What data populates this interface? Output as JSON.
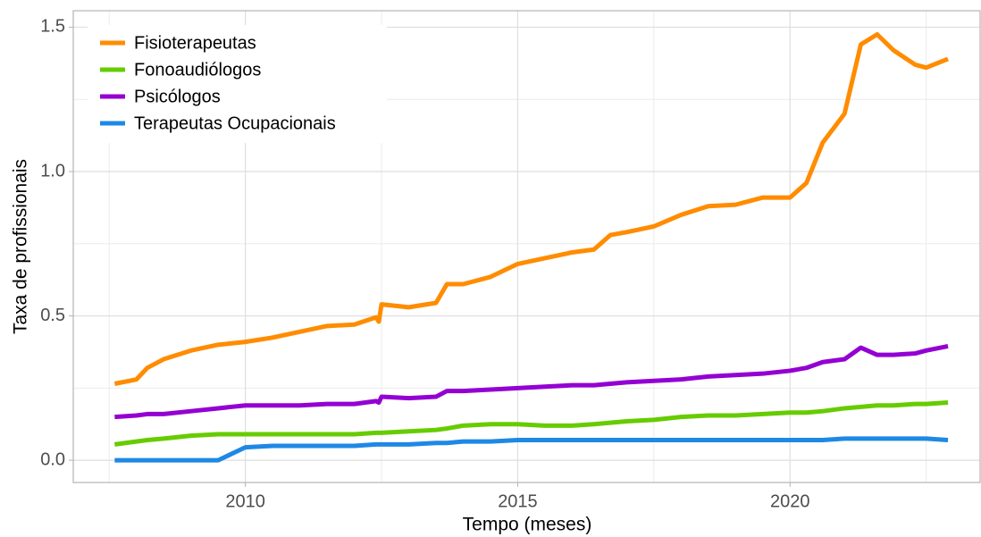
{
  "chart_data": {
    "type": "line",
    "xlabel": "Tempo (meses)",
    "ylabel": "Taxa de profissionais",
    "x": [
      2007.6,
      2008,
      2008.2,
      2008.5,
      2009,
      2009.5,
      2010,
      2010.5,
      2011,
      2011.5,
      2012,
      2012.4,
      2012.45,
      2012.5,
      2013,
      2013.5,
      2013.7,
      2014,
      2014.5,
      2015,
      2015.5,
      2016,
      2016.4,
      2016.7,
      2017,
      2017.5,
      2018,
      2018.5,
      2019,
      2019.5,
      2020,
      2020.3,
      2020.6,
      2021,
      2021.3,
      2021.6,
      2021.9,
      2022.3,
      2022.5,
      2022.9
    ],
    "series": [
      {
        "name": "Fisioterapeutas",
        "color": "#ff8c00",
        "values": [
          0.265,
          0.28,
          0.32,
          0.35,
          0.38,
          0.4,
          0.41,
          0.425,
          0.445,
          0.465,
          0.47,
          0.495,
          0.48,
          0.54,
          0.53,
          0.545,
          0.61,
          0.61,
          0.635,
          0.68,
          0.7,
          0.72,
          0.73,
          0.78,
          0.79,
          0.81,
          0.85,
          0.88,
          0.885,
          0.91,
          0.91,
          0.96,
          1.1,
          1.2,
          1.44,
          1.475,
          1.42,
          1.37,
          1.36,
          1.39
        ]
      },
      {
        "name": "Fonoaudiólogos",
        "color": "#66cc00",
        "values": [
          0.055,
          0.065,
          0.07,
          0.075,
          0.085,
          0.09,
          0.09,
          0.09,
          0.09,
          0.09,
          0.09,
          0.095,
          0.095,
          0.095,
          0.1,
          0.105,
          0.11,
          0.12,
          0.125,
          0.125,
          0.12,
          0.12,
          0.125,
          0.13,
          0.135,
          0.14,
          0.15,
          0.155,
          0.155,
          0.16,
          0.165,
          0.165,
          0.17,
          0.18,
          0.185,
          0.19,
          0.19,
          0.195,
          0.195,
          0.2
        ]
      },
      {
        "name": "Psicólogos",
        "color": "#9400d3",
        "values": [
          0.15,
          0.155,
          0.16,
          0.16,
          0.17,
          0.18,
          0.19,
          0.19,
          0.19,
          0.195,
          0.195,
          0.205,
          0.2,
          0.22,
          0.215,
          0.22,
          0.24,
          0.24,
          0.245,
          0.25,
          0.255,
          0.26,
          0.26,
          0.265,
          0.27,
          0.275,
          0.28,
          0.29,
          0.295,
          0.3,
          0.31,
          0.32,
          0.34,
          0.35,
          0.39,
          0.365,
          0.365,
          0.37,
          0.38,
          0.395
        ]
      },
      {
        "name": "Terapeutas Ocupacionais",
        "color": "#1e88e5",
        "values": [
          0,
          0,
          0,
          0,
          0,
          0,
          0.045,
          0.05,
          0.05,
          0.05,
          0.05,
          0.055,
          0.055,
          0.055,
          0.055,
          0.06,
          0.06,
          0.065,
          0.065,
          0.07,
          0.07,
          0.07,
          0.07,
          0.07,
          0.07,
          0.07,
          0.07,
          0.07,
          0.07,
          0.07,
          0.07,
          0.07,
          0.07,
          0.075,
          0.075,
          0.075,
          0.075,
          0.075,
          0.075,
          0.07
        ]
      }
    ],
    "xlim": [
      2006.84,
      2023.49
    ],
    "ylim": [
      -0.077,
      1.557
    ],
    "xticks": [
      2010,
      2015,
      2020
    ],
    "yticks": [
      {
        "value": 0,
        "label": "0.0"
      },
      0.5,
      {
        "value": 1,
        "label": "1.0"
      },
      1.5
    ],
    "minor_xticks": [
      2007.5,
      2012.5,
      2017.5,
      2022.5
    ],
    "minor_yticks": [
      0.25,
      0.75,
      1.25
    ],
    "grid": true,
    "legend": "top-left"
  }
}
